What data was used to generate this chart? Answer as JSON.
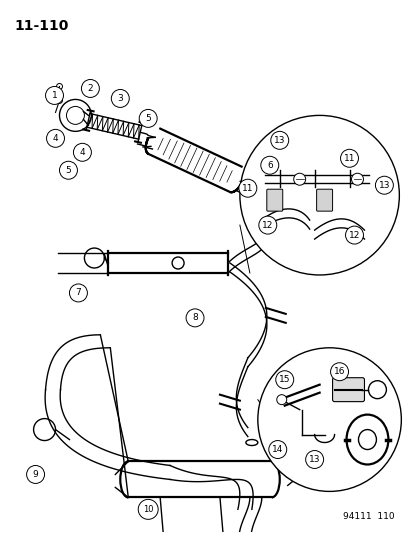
{
  "title": "11-110",
  "footer": "94111  110",
  "bg": "#ffffff",
  "lc": "#000000",
  "fig_w": 4.14,
  "fig_h": 5.33,
  "dpi": 100
}
